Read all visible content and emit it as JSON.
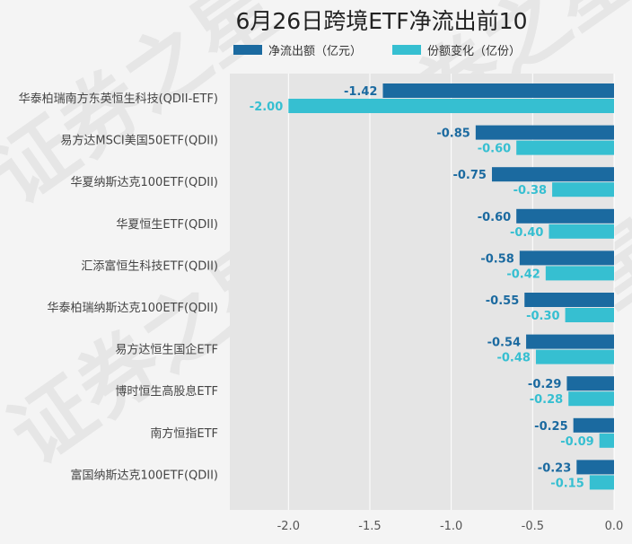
{
  "chart_data": {
    "type": "bar",
    "orientation": "horizontal",
    "title": "6月26日跨境ETF净流出前10",
    "categories": [
      "华泰柏瑞南方东英恒生科技(QDII-ETF)",
      "易方达MSCI美国50ETF(QDII)",
      "华夏纳斯达克100ETF(QDII)",
      "华夏恒生ETF(QDII)",
      "汇添富恒生科技ETF(QDII)",
      "华泰柏瑞纳斯达克100ETF(QDII)",
      "易方达恒生国企ETF",
      "博时恒生高股息ETF",
      "南方恒指ETF",
      "富国纳斯达克100ETF(QDII)"
    ],
    "series": [
      {
        "name": "净流出额（亿元）",
        "color": "#1b6aa0",
        "values": [
          -1.42,
          -0.85,
          -0.75,
          -0.6,
          -0.58,
          -0.55,
          -0.54,
          -0.29,
          -0.25,
          -0.23
        ],
        "labels": [
          "-1.42",
          "-0.85",
          "-0.75",
          "-0.60",
          "-0.58",
          "-0.55",
          "-0.54",
          "-0.29",
          "-0.25",
          "-0.23"
        ]
      },
      {
        "name": "份额变化（亿份）",
        "color": "#36bfd1",
        "values": [
          -2.0,
          -0.6,
          -0.38,
          -0.4,
          -0.42,
          -0.3,
          -0.48,
          -0.28,
          -0.09,
          -0.15
        ],
        "labels": [
          "-2.00",
          "-0.60",
          "-0.38",
          "-0.40",
          "-0.42",
          "-0.30",
          "-0.48",
          "-0.28",
          "-0.09",
          "-0.15"
        ]
      }
    ],
    "xlim": [
      -2.36,
      0.0
    ],
    "xticks": [
      -2.0,
      -1.5,
      -1.0,
      -0.5,
      0.0
    ],
    "xtick_labels": [
      "-2.0",
      "-1.5",
      "-1.0",
      "-0.5",
      "0.0"
    ],
    "grid": true,
    "legend_position": "top"
  },
  "watermark": "证券之星"
}
